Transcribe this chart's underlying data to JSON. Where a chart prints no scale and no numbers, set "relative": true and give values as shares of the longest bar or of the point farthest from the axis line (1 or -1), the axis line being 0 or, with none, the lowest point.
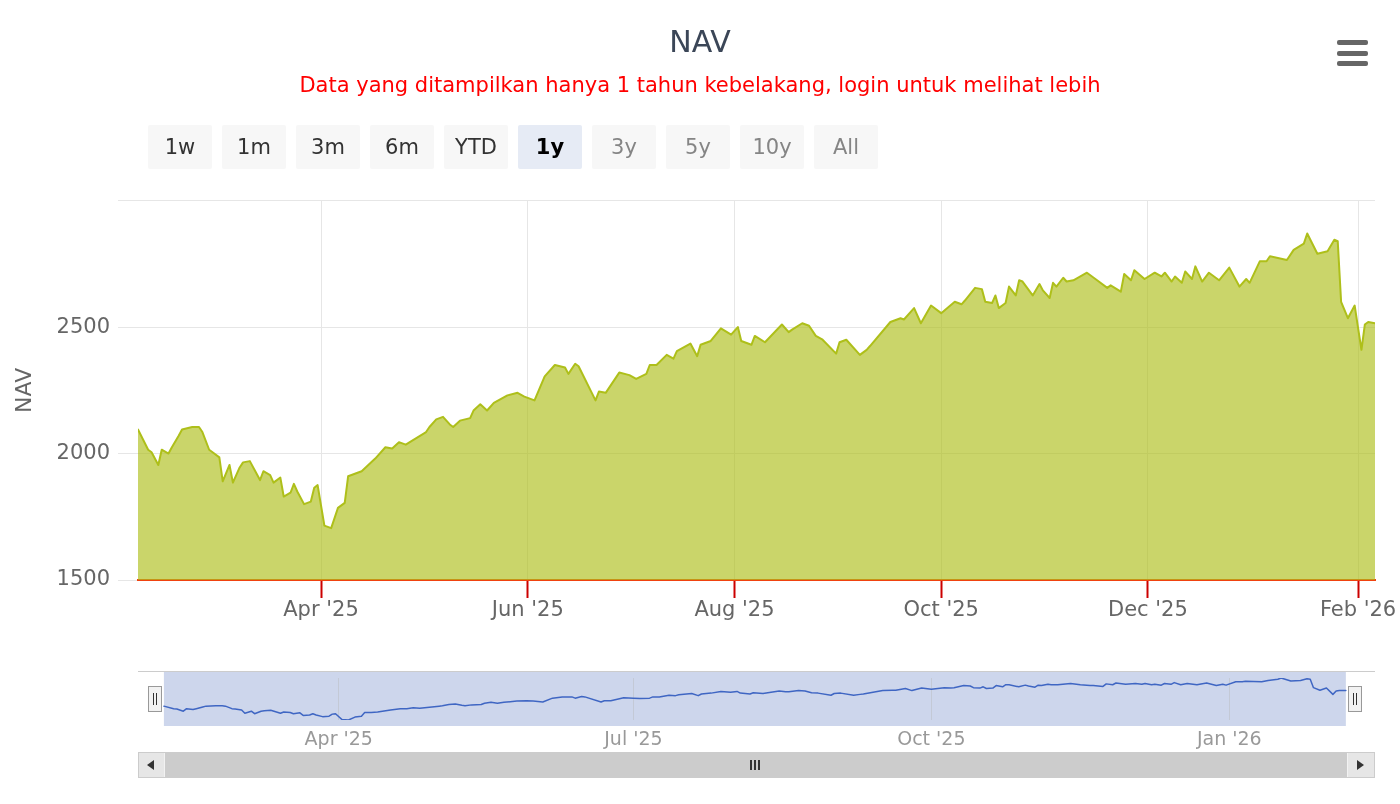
{
  "chart_data": [
    {
      "type": "area",
      "title": "NAV",
      "subtitle": "Data yang ditampilkan hanya 1 tahun kebelakang, login untuk melihat lebih",
      "ylabel": "NAV",
      "annotations": [
        "1w",
        "1m",
        "3m",
        "6m",
        "YTD",
        "1y",
        "3y",
        "5y",
        "10y",
        "All"
      ],
      "x": [
        "2025-02-06",
        "2025-02-09",
        "2025-02-10",
        "2025-02-12",
        "2025-02-13",
        "2025-02-15",
        "2025-02-16",
        "2025-02-18",
        "2025-02-19",
        "2025-02-22",
        "2025-02-24",
        "2025-02-25",
        "2025-02-27",
        "2025-02-28",
        "2025-03-02",
        "2025-03-03",
        "2025-03-05",
        "2025-03-06",
        "2025-03-08",
        "2025-03-09",
        "2025-03-11",
        "2025-03-14",
        "2025-03-15",
        "2025-03-17",
        "2025-03-18",
        "2025-03-20",
        "2025-03-21",
        "2025-03-23",
        "2025-03-24",
        "2025-03-25",
        "2025-03-27",
        "2025-03-29",
        "2025-03-30",
        "2025-03-31",
        "2025-04-02",
        "2025-04-04",
        "2025-04-06",
        "2025-04-08",
        "2025-04-09",
        "2025-04-11",
        "2025-04-13",
        "2025-04-17",
        "2025-04-20",
        "2025-04-22",
        "2025-04-24",
        "2025-04-26",
        "2025-05-02",
        "2025-05-03",
        "2025-05-05",
        "2025-05-07",
        "2025-05-09",
        "2025-05-10",
        "2025-05-12",
        "2025-05-15",
        "2025-05-16",
        "2025-05-18",
        "2025-05-20",
        "2025-05-22",
        "2025-05-26",
        "2025-05-29",
        "2025-05-31",
        "2025-06-03",
        "2025-06-06",
        "2025-06-09",
        "2025-06-12",
        "2025-06-13",
        "2025-06-15",
        "2025-06-16",
        "2025-06-21",
        "2025-06-22",
        "2025-06-24",
        "2025-06-28",
        "2025-07-01",
        "2025-07-03",
        "2025-07-06",
        "2025-07-07",
        "2025-07-09",
        "2025-07-12",
        "2025-07-14",
        "2025-07-15",
        "2025-07-19",
        "2025-07-21",
        "2025-07-22",
        "2025-07-25",
        "2025-07-28",
        "2025-07-31",
        "2025-08-02",
        "2025-08-03",
        "2025-08-06",
        "2025-08-07",
        "2025-08-10",
        "2025-08-15",
        "2025-08-17",
        "2025-08-18",
        "2025-08-21",
        "2025-08-23",
        "2025-08-25",
        "2025-08-27",
        "2025-08-31",
        "2025-09-01",
        "2025-09-03",
        "2025-09-07",
        "2025-09-09",
        "2025-09-10",
        "2025-09-16",
        "2025-09-19",
        "2025-09-20",
        "2025-09-23",
        "2025-09-25",
        "2025-09-28",
        "2025-10-01",
        "2025-10-05",
        "2025-10-07",
        "2025-10-08",
        "2025-10-11",
        "2025-10-13",
        "2025-10-14",
        "2025-10-16",
        "2025-10-17",
        "2025-10-18",
        "2025-10-20",
        "2025-10-21",
        "2025-10-23",
        "2025-10-24",
        "2025-10-25",
        "2025-10-28",
        "2025-10-30",
        "2025-10-31",
        "2025-11-02",
        "2025-11-03",
        "2025-11-04",
        "2025-11-06",
        "2025-11-07",
        "2025-11-09",
        "2025-11-13",
        "2025-11-16",
        "2025-11-19",
        "2025-11-20",
        "2025-11-23",
        "2025-11-24",
        "2025-11-26",
        "2025-11-27",
        "2025-11-30",
        "2025-12-03",
        "2025-12-05",
        "2025-12-06",
        "2025-12-08",
        "2025-12-09",
        "2025-12-11",
        "2025-12-12",
        "2025-12-14",
        "2025-12-15",
        "2025-12-17",
        "2025-12-19",
        "2025-12-22",
        "2025-12-25",
        "2025-12-28",
        "2025-12-30",
        "2025-12-31",
        "2026-01-03",
        "2026-01-05",
        "2026-01-06",
        "2026-01-11",
        "2026-01-13",
        "2026-01-16",
        "2026-01-17",
        "2026-01-20",
        "2026-01-23",
        "2026-01-25",
        "2026-01-26",
        "2026-01-27",
        "2026-01-29",
        "2026-01-31",
        "2026-02-02",
        "2026-02-03",
        "2026-02-04",
        "2026-02-06"
      ],
      "series": [
        {
          "color": "#aebf1a",
          "values": [
            2095,
            2015,
            2005,
            1955,
            2015,
            2000,
            2025,
            2070,
            2095,
            2105,
            2105,
            2085,
            2015,
            2005,
            1985,
            1890,
            1955,
            1885,
            1945,
            1965,
            1970,
            1895,
            1930,
            1915,
            1885,
            1905,
            1830,
            1845,
            1880,
            1850,
            1800,
            1810,
            1865,
            1875,
            1715,
            1705,
            1785,
            1805,
            1910,
            1920,
            1930,
            1980,
            2025,
            2020,
            2045,
            2035,
            2085,
            2105,
            2135,
            2145,
            2115,
            2105,
            2130,
            2140,
            2170,
            2195,
            2170,
            2200,
            2230,
            2240,
            2225,
            2210,
            2305,
            2350,
            2340,
            2315,
            2355,
            2345,
            2210,
            2245,
            2240,
            2320,
            2310,
            2295,
            2315,
            2350,
            2350,
            2390,
            2375,
            2405,
            2435,
            2385,
            2430,
            2445,
            2495,
            2470,
            2500,
            2445,
            2430,
            2465,
            2440,
            2510,
            2480,
            2490,
            2515,
            2505,
            2465,
            2450,
            2395,
            2440,
            2450,
            2390,
            2410,
            2425,
            2520,
            2535,
            2530,
            2575,
            2515,
            2585,
            2555,
            2600,
            2590,
            2605,
            2655,
            2650,
            2600,
            2595,
            2625,
            2575,
            2595,
            2660,
            2625,
            2685,
            2680,
            2625,
            2670,
            2645,
            2615,
            2675,
            2660,
            2695,
            2680,
            2685,
            2715,
            2685,
            2655,
            2665,
            2640,
            2710,
            2685,
            2725,
            2690,
            2715,
            2700,
            2715,
            2680,
            2700,
            2675,
            2720,
            2690,
            2740,
            2680,
            2715,
            2685,
            2735,
            2660,
            2690,
            2675,
            2760,
            2760,
            2780,
            2765,
            2805,
            2830,
            2870,
            2790,
            2800,
            2845,
            2840,
            2600,
            2535,
            2585,
            2410,
            2510,
            2520,
            2515
          ]
        }
      ],
      "xlim": [
        "2025-02-06",
        "2026-02-06"
      ],
      "xticks": [
        {
          "value": "2025-04-01",
          "label": "Apr '25"
        },
        {
          "value": "2025-06-01",
          "label": "Jun '25"
        },
        {
          "value": "2025-08-01",
          "label": "Aug '25"
        },
        {
          "value": "2025-10-01",
          "label": "Oct '25"
        },
        {
          "value": "2025-12-01",
          "label": "Dec '25"
        },
        {
          "value": "2026-02-01",
          "label": "Feb '26"
        }
      ],
      "ylim": [
        1500,
        3000
      ],
      "yticks": [
        1500,
        2000,
        2500,
        {
          "value": 3000,
          "label": null
        }
      ],
      "grid": true
    },
    {
      "type": "line",
      "relative": true,
      "x": [
        "2025-02-06",
        "2025-02-09",
        "2025-02-10",
        "2025-02-12",
        "2025-02-13",
        "2025-02-15",
        "2025-02-16",
        "2025-02-18",
        "2025-02-19",
        "2025-02-22",
        "2025-02-24",
        "2025-02-25",
        "2025-02-27",
        "2025-02-28",
        "2025-03-02",
        "2025-03-03",
        "2025-03-05",
        "2025-03-06",
        "2025-03-08",
        "2025-03-09",
        "2025-03-11",
        "2025-03-14",
        "2025-03-15",
        "2025-03-17",
        "2025-03-18",
        "2025-03-20",
        "2025-03-21",
        "2025-03-23",
        "2025-03-24",
        "2025-03-25",
        "2025-03-27",
        "2025-03-29",
        "2025-03-30",
        "2025-03-31",
        "2025-04-02",
        "2025-04-04",
        "2025-04-06",
        "2025-04-08",
        "2025-04-09",
        "2025-04-11",
        "2025-04-13",
        "2025-04-17",
        "2025-04-20",
        "2025-04-22",
        "2025-04-24",
        "2025-04-26",
        "2025-05-02",
        "2025-05-03",
        "2025-05-05",
        "2025-05-07",
        "2025-05-09",
        "2025-05-10",
        "2025-05-12",
        "2025-05-15",
        "2025-05-16",
        "2025-05-18",
        "2025-05-20",
        "2025-05-22",
        "2025-05-26",
        "2025-05-29",
        "2025-05-31",
        "2025-06-03",
        "2025-06-06",
        "2025-06-09",
        "2025-06-12",
        "2025-06-13",
        "2025-06-15",
        "2025-06-16",
        "2025-06-21",
        "2025-06-22",
        "2025-06-24",
        "2025-06-28",
        "2025-07-01",
        "2025-07-03",
        "2025-07-06",
        "2025-07-07",
        "2025-07-09",
        "2025-07-12",
        "2025-07-14",
        "2025-07-15",
        "2025-07-19",
        "2025-07-21",
        "2025-07-22",
        "2025-07-25",
        "2025-07-28",
        "2025-07-31",
        "2025-08-02",
        "2025-08-03",
        "2025-08-06",
        "2025-08-07",
        "2025-08-10",
        "2025-08-15",
        "2025-08-17",
        "2025-08-18",
        "2025-08-21",
        "2025-08-23",
        "2025-08-25",
        "2025-08-27",
        "2025-08-31",
        "2025-09-01",
        "2025-09-03",
        "2025-09-07",
        "2025-09-09",
        "2025-09-10",
        "2025-09-16",
        "2025-09-19",
        "2025-09-20",
        "2025-09-23",
        "2025-09-25",
        "2025-09-28",
        "2025-10-01",
        "2025-10-05",
        "2025-10-07",
        "2025-10-08",
        "2025-10-11",
        "2025-10-13",
        "2025-10-14",
        "2025-10-16",
        "2025-10-17",
        "2025-10-18",
        "2025-10-20",
        "2025-10-21",
        "2025-10-23",
        "2025-10-24",
        "2025-10-25",
        "2025-10-28",
        "2025-10-30",
        "2025-10-31",
        "2025-11-02",
        "2025-11-03",
        "2025-11-04",
        "2025-11-06",
        "2025-11-07",
        "2025-11-09",
        "2025-11-13",
        "2025-11-16",
        "2025-11-19",
        "2025-11-20",
        "2025-11-23",
        "2025-11-24",
        "2025-11-26",
        "2025-11-27",
        "2025-11-30",
        "2025-12-03",
        "2025-12-05",
        "2025-12-06",
        "2025-12-08",
        "2025-12-09",
        "2025-12-11",
        "2025-12-12",
        "2025-12-14",
        "2025-12-15",
        "2025-12-17",
        "2025-12-19",
        "2025-12-22",
        "2025-12-25",
        "2025-12-28",
        "2025-12-30",
        "2025-12-31",
        "2026-01-03",
        "2026-01-05",
        "2026-01-06",
        "2026-01-11",
        "2026-01-13",
        "2026-01-16",
        "2026-01-17",
        "2026-01-20",
        "2026-01-23",
        "2026-01-25",
        "2026-01-26",
        "2026-01-27",
        "2026-01-29",
        "2026-01-31",
        "2026-02-02",
        "2026-02-03",
        "2026-02-04",
        "2026-02-06"
      ],
      "series": [
        {
          "color": "#3f66c3",
          "values": [
            0.33,
            0.27,
            0.26,
            0.21,
            0.27,
            0.25,
            0.27,
            0.31,
            0.33,
            0.34,
            0.34,
            0.33,
            0.27,
            0.26,
            0.24,
            0.16,
            0.21,
            0.15,
            0.21,
            0.22,
            0.23,
            0.16,
            0.19,
            0.18,
            0.15,
            0.17,
            0.11,
            0.12,
            0.15,
            0.12,
            0.08,
            0.09,
            0.14,
            0.15,
            0.01,
            0,
            0.07,
            0.09,
            0.18,
            0.18,
            0.19,
            0.24,
            0.27,
            0.27,
            0.29,
            0.28,
            0.33,
            0.34,
            0.37,
            0.38,
            0.35,
            0.34,
            0.36,
            0.37,
            0.4,
            0.42,
            0.4,
            0.42,
            0.45,
            0.46,
            0.45,
            0.43,
            0.52,
            0.55,
            0.55,
            0.52,
            0.56,
            0.55,
            0.43,
            0.46,
            0.46,
            0.53,
            0.52,
            0.51,
            0.52,
            0.55,
            0.55,
            0.59,
            0.58,
            0.6,
            0.63,
            0.58,
            0.62,
            0.64,
            0.68,
            0.66,
            0.68,
            0.64,
            0.62,
            0.65,
            0.63,
            0.69,
            0.67,
            0.67,
            0.7,
            0.69,
            0.65,
            0.64,
            0.59,
            0.63,
            0.64,
            0.59,
            0.61,
            0.62,
            0.7,
            0.71,
            0.71,
            0.75,
            0.7,
            0.76,
            0.73,
            0.77,
            0.76,
            0.77,
            0.82,
            0.81,
            0.77,
            0.76,
            0.79,
            0.75,
            0.76,
            0.82,
            0.79,
            0.84,
            0.84,
            0.79,
            0.83,
            0.81,
            0.78,
            0.83,
            0.82,
            0.85,
            0.84,
            0.84,
            0.87,
            0.84,
            0.82,
            0.82,
            0.8,
            0.86,
            0.84,
            0.88,
            0.85,
            0.87,
            0.85,
            0.87,
            0.84,
            0.85,
            0.83,
            0.87,
            0.85,
            0.89,
            0.84,
            0.87,
            0.84,
            0.88,
            0.82,
            0.85,
            0.83,
            0.91,
            0.91,
            0.92,
            0.91,
            0.94,
            0.97,
            1,
            0.93,
            0.94,
            0.98,
            0.97,
            0.77,
            0.71,
            0.76,
            0.61,
            0.69,
            0.7,
            0.7
          ]
        }
      ],
      "xlim": [
        "2025-01-29",
        "2026-02-15"
      ],
      "xticks": [
        {
          "value": "2025-04-01",
          "label": "Apr '25"
        },
        {
          "value": "2025-07-01",
          "label": "Jul '25"
        },
        {
          "value": "2025-10-01",
          "label": "Oct '25"
        },
        {
          "value": "2026-01-01",
          "label": "Jan '26"
        }
      ],
      "tick_labels": "x",
      "grid": "x",
      "bands": [
        {
          "axis": "x",
          "from": "2025-02-06",
          "to": "2026-02-06",
          "color": "#cdd6ec"
        }
      ]
    }
  ]
}
